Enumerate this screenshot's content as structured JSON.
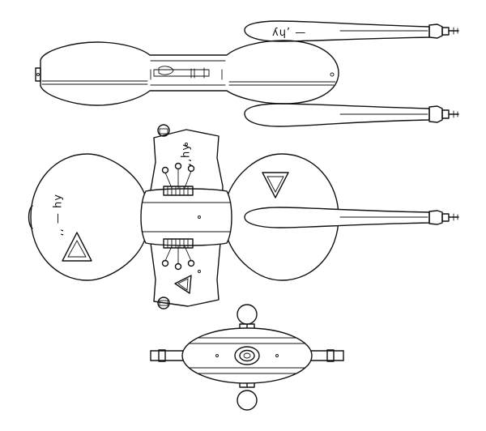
{
  "drawing": {
    "views": [
      {
        "id": "side-view"
      },
      {
        "id": "top-view"
      },
      {
        "id": "front-view"
      }
    ],
    "markings": {
      "side_nacelle": "ʎɥ’ —",
      "top_left_hull": "ʎɥ — ’’",
      "top_wing": "ʎɥ’’"
    },
    "line_color": "#111111",
    "paper_color": "#ffffff"
  }
}
